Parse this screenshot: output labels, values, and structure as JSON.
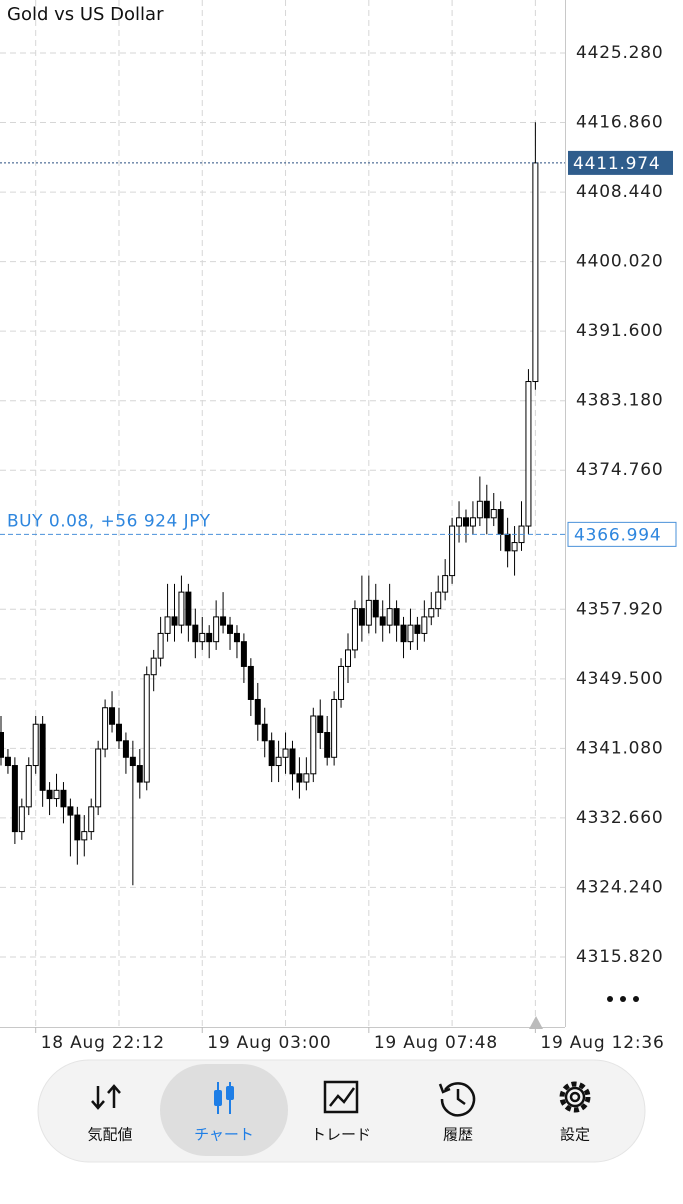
{
  "chart_data": {
    "type": "candlestick",
    "title": "Gold vs US Dollar",
    "x": [
      "18 Aug 21:12",
      "18 Aug 21:24",
      "18 Aug 21:36",
      "18 Aug 21:48",
      "18 Aug 22:00",
      "18 Aug 22:12",
      "18 Aug 22:24",
      "18 Aug 22:36",
      "18 Aug 22:48",
      "18 Aug 23:00",
      "18 Aug 23:12",
      "18 Aug 23:24",
      "18 Aug 23:36",
      "18 Aug 23:48",
      "19 Aug 00:00",
      "19 Aug 00:12",
      "19 Aug 00:24",
      "19 Aug 00:36",
      "19 Aug 00:48",
      "19 Aug 01:00",
      "19 Aug 01:12",
      "19 Aug 01:24",
      "19 Aug 01:36",
      "19 Aug 01:48",
      "19 Aug 02:00",
      "19 Aug 02:12",
      "19 Aug 02:24",
      "19 Aug 02:36",
      "19 Aug 02:48",
      "19 Aug 03:00",
      "19 Aug 03:12",
      "19 Aug 03:24",
      "19 Aug 03:36",
      "19 Aug 03:48",
      "19 Aug 04:00",
      "19 Aug 04:12",
      "19 Aug 04:24",
      "19 Aug 04:36",
      "19 Aug 04:48",
      "19 Aug 05:00",
      "19 Aug 05:12",
      "19 Aug 05:24",
      "19 Aug 05:36",
      "19 Aug 05:48",
      "19 Aug 06:00",
      "19 Aug 06:12",
      "19 Aug 06:24",
      "19 Aug 06:36",
      "19 Aug 06:48",
      "19 Aug 07:00",
      "19 Aug 07:12",
      "19 Aug 07:24",
      "19 Aug 07:36",
      "19 Aug 07:48",
      "19 Aug 08:00",
      "19 Aug 08:12",
      "19 Aug 08:24",
      "19 Aug 08:36",
      "19 Aug 08:48",
      "19 Aug 09:00",
      "19 Aug 09:12",
      "19 Aug 09:24",
      "19 Aug 09:36",
      "19 Aug 09:48",
      "19 Aug 10:00",
      "19 Aug 10:12",
      "19 Aug 10:24",
      "19 Aug 10:36",
      "19 Aug 10:48",
      "19 Aug 11:00",
      "19 Aug 11:12",
      "19 Aug 11:24",
      "19 Aug 11:36",
      "19 Aug 11:48",
      "19 Aug 12:00",
      "19 Aug 12:12",
      "19 Aug 12:24",
      "19 Aug 12:36"
    ],
    "open": [
      4343,
      4340,
      4339,
      4331,
      4334,
      4339,
      4344,
      4336,
      4335,
      4336,
      4334,
      4333,
      4330,
      4331,
      4334,
      4341,
      4346,
      4344,
      4342,
      4340,
      4339,
      4337,
      4350,
      4352,
      4355,
      4357,
      4356,
      4360,
      4356,
      4354,
      4355,
      4354,
      4357,
      4356,
      4355,
      4354,
      4351,
      4347,
      4344,
      4342,
      4339,
      4340,
      4341,
      4338,
      4337,
      4338,
      4345,
      4343,
      4340,
      4347,
      4351,
      4353,
      4358,
      4356,
      4359,
      4357,
      4356,
      4358,
      4356,
      4354,
      4356,
      4355,
      4357,
      4358,
      4360,
      4362,
      4368,
      4369,
      4368,
      4369,
      4371,
      4369,
      4370,
      4367,
      4365,
      4366,
      4368,
      4385.5
    ],
    "high": [
      4345,
      4341,
      4340,
      4335,
      4340,
      4345,
      4345,
      4337,
      4338,
      4337,
      4335,
      4334,
      4333,
      4335,
      4342,
      4347,
      4348,
      4346,
      4343,
      4342,
      4341,
      4351,
      4353,
      4357,
      4361,
      4361,
      4362,
      4361,
      4358,
      4357,
      4356,
      4359,
      4360,
      4357,
      4356,
      4355,
      4352,
      4349,
      4346,
      4343,
      4342,
      4343,
      4342,
      4340,
      4340,
      4346,
      4347,
      4345,
      4348,
      4352,
      4355,
      4359,
      4362,
      4362,
      4361,
      4359,
      4361,
      4359,
      4357,
      4358,
      4357,
      4359,
      4360,
      4362,
      4364,
      4369,
      4371,
      4370,
      4371,
      4374,
      4373,
      4372,
      4371,
      4369,
      4368,
      4371,
      4387,
      4416.9
    ],
    "low": [
      4339,
      4338,
      4329.5,
      4330,
      4333,
      4338,
      4334,
      4333,
      4334,
      4332,
      4328,
      4327,
      4328,
      4330,
      4333,
      4340,
      4343,
      4341,
      4338,
      4324.5,
      4335,
      4336,
      4348,
      4351,
      4354,
      4354,
      4355,
      4354,
      4352,
      4353,
      4352,
      4353,
      4355,
      4353,
      4352,
      4349,
      4345,
      4342,
      4340,
      4337,
      4337,
      4338,
      4336,
      4335,
      4336,
      4337,
      4341,
      4339,
      4339,
      4346,
      4349,
      4352,
      4354,
      4355,
      4355,
      4354,
      4355,
      4354,
      4352,
      4353,
      4353,
      4354,
      4356,
      4357,
      4359,
      4361,
      4366,
      4366,
      4367,
      4368,
      4367,
      4368,
      4365,
      4363,
      4362,
      4365,
      4367,
      4384.5
    ],
    "close": [
      4340,
      4339,
      4331,
      4334,
      4339,
      4344,
      4336,
      4335,
      4336,
      4334,
      4333,
      4330,
      4331,
      4334,
      4341,
      4346,
      4344,
      4342,
      4340,
      4339,
      4337,
      4350,
      4352,
      4355,
      4357,
      4356,
      4360,
      4356,
      4354,
      4355,
      4354,
      4357,
      4356,
      4355,
      4354,
      4351,
      4347,
      4344,
      4342,
      4339,
      4340,
      4341,
      4338,
      4337,
      4338,
      4345,
      4343,
      4340,
      4347,
      4351,
      4353,
      4358,
      4356,
      4359,
      4357,
      4356,
      4358,
      4356,
      4354,
      4356,
      4355,
      4357,
      4358,
      4360,
      4362,
      4368,
      4369,
      4368,
      4369,
      4371,
      4369,
      4370,
      4367,
      4365,
      4366,
      4368,
      4385.5,
      4411.974
    ],
    "up_color": "#ffffff",
    "down_color": "#000000",
    "ylim": [
      4307.34,
      4431.7
    ],
    "yticks": [
      {
        "value": 4315.82,
        "label": "4315.820"
      },
      {
        "value": 4324.24,
        "label": "4324.240"
      },
      {
        "value": 4332.66,
        "label": "4332.660"
      },
      {
        "value": 4341.08,
        "label": "4341.080"
      },
      {
        "value": 4349.5,
        "label": "4349.500"
      },
      {
        "value": 4357.92,
        "label": "4357.920"
      },
      {
        "value": 4374.76,
        "label": "4374.760"
      },
      {
        "value": 4383.18,
        "label": "4383.180"
      },
      {
        "value": 4391.6,
        "label": "4391.600"
      },
      {
        "value": 4400.02,
        "label": "4400.020"
      },
      {
        "value": 4408.44,
        "label": "4408.440"
      },
      {
        "value": 4416.86,
        "label": "4416.860"
      },
      {
        "value": 4425.28,
        "label": "4425.280"
      }
    ],
    "xticks": [
      "18 Aug 22:12",
      "19 Aug 03:00",
      "19 Aug 07:48",
      "19 Aug 12:36"
    ],
    "grid": true,
    "current_price": 4411.974,
    "position": {
      "label": "BUY 0.08, +56 924 JPY",
      "price": 4366.994
    }
  },
  "nav": {
    "tabs": [
      "気配値",
      "チャート",
      "トレード",
      "履歴",
      "設定"
    ],
    "active": 1
  }
}
